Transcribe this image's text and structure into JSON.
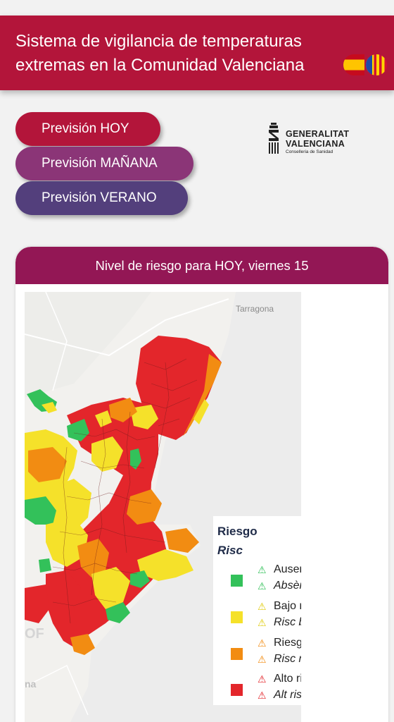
{
  "header": {
    "title_line1": "Sistema de vigilancia de temperaturas",
    "title_line2": "extremas en la Comunidad Valenciana",
    "flags": [
      "flag-es-icon",
      "flag-va-icon"
    ]
  },
  "nav": {
    "hoy": "Previsión HOY",
    "manana": "Previsión MAÑANA",
    "verano": "Previsión VERANO"
  },
  "logo": {
    "line1": "GENERALITAT",
    "line2": "VALENCIANA",
    "line3": "Conselleria de Sanidad"
  },
  "card": {
    "title": "Nivel de riesgo para HOY, viernes 15"
  },
  "map": {
    "city_label": "Tarragona",
    "fragment_of": "OF",
    "fragment_na": "na"
  },
  "legend": {
    "title_es": "Riesgo",
    "title_va": "Risc",
    "triangle_icon": "warning-triangle-icon",
    "items": [
      {
        "es": "Ausencia de riesgo",
        "va": "Absència de risc",
        "color": "#33c15a"
      },
      {
        "es": "Bajo riesgo",
        "va": "Risc baix",
        "color": "#f5e12a"
      },
      {
        "es": "Riesgo medio",
        "va": "Risc mitjà",
        "color": "#f28c12"
      },
      {
        "es": "Alto riesgo",
        "va": "Alt risc",
        "color": "#e3262b"
      }
    ]
  },
  "colors": {
    "header": "#b3153a",
    "card_header": "#931755",
    "btn_manana": "#8b3577",
    "btn_verano": "#533f7c",
    "sea": "#ececec"
  }
}
